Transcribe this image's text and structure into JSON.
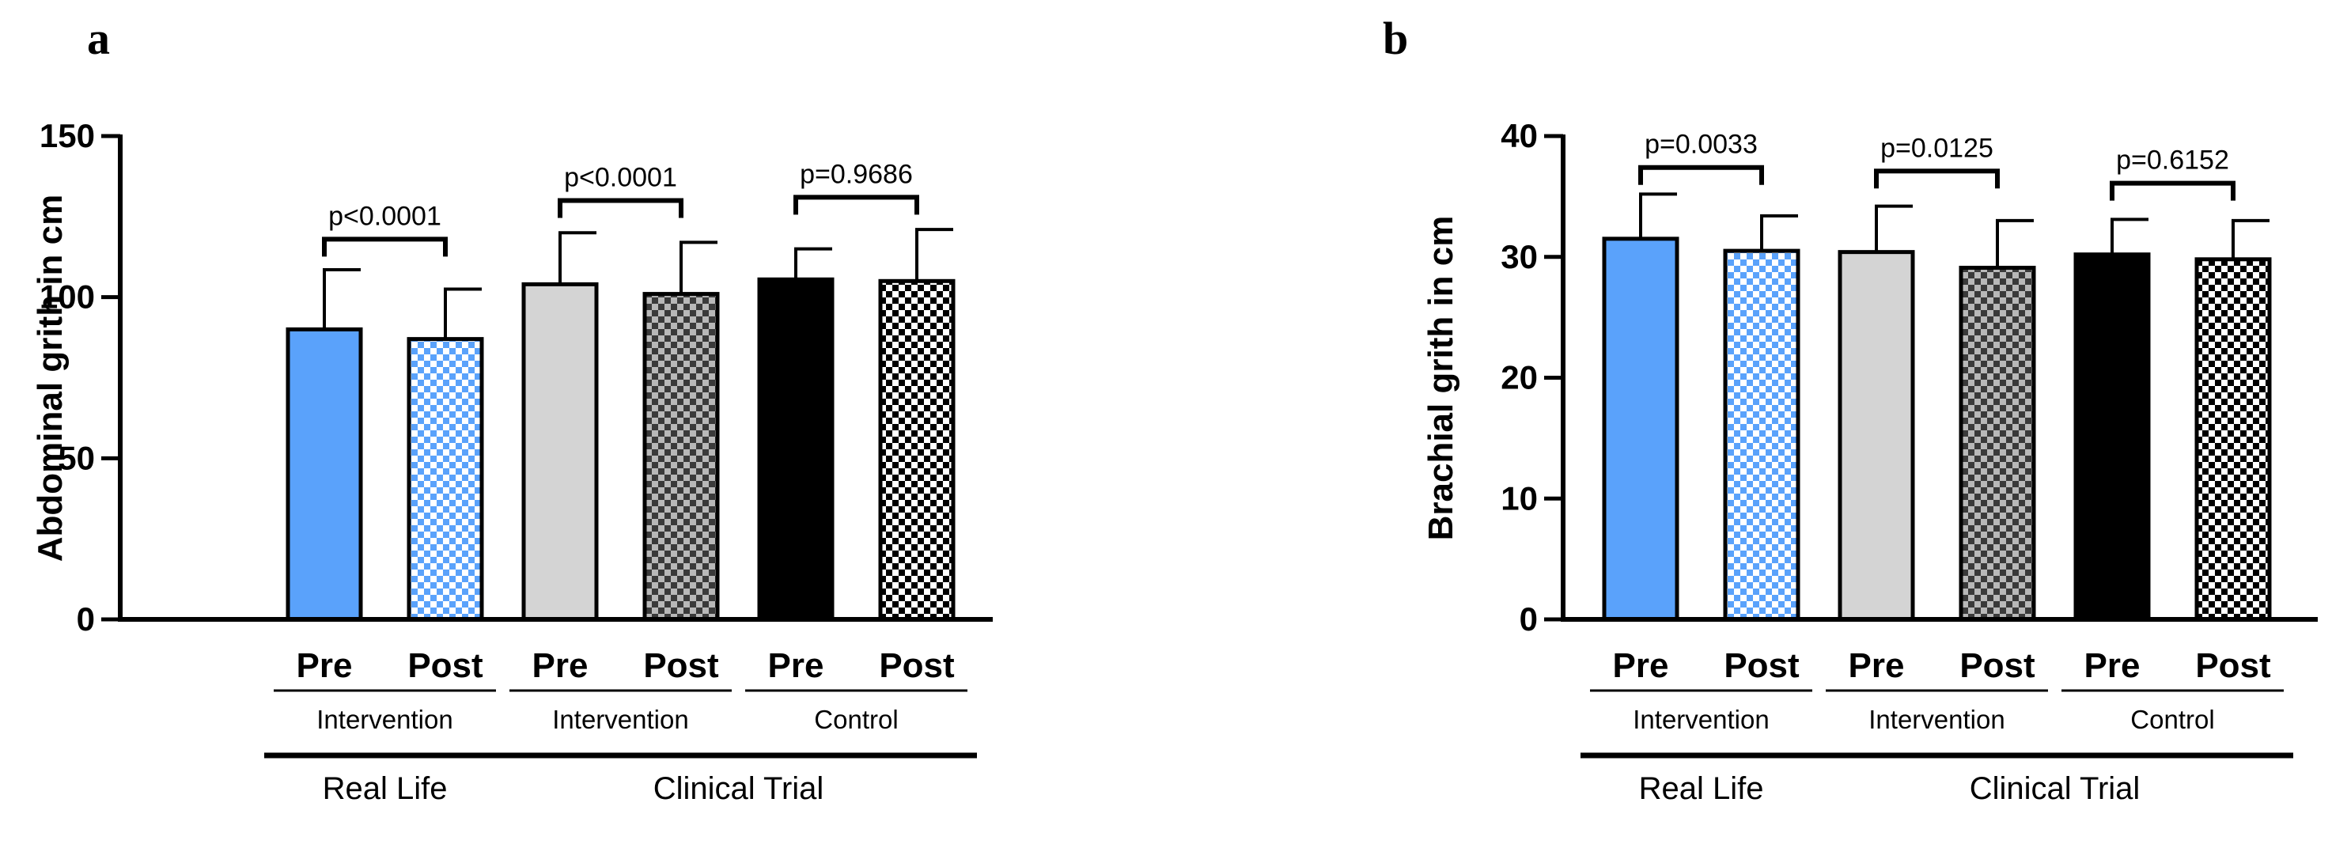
{
  "colors": {
    "blue": "#5aa2fb",
    "light_gray": "#d4d4d4",
    "dark_gray": "#6e6e6e",
    "black": "#000000",
    "white": "#ffffff"
  },
  "chart_data": [
    {
      "panel_label": "a",
      "type": "bar",
      "ylabel": "Abdominal grith in cm",
      "ylim": [
        0,
        150
      ],
      "yticks": [
        0,
        50,
        100,
        150
      ],
      "tick_labels": [
        "0",
        "50",
        "100",
        "150"
      ],
      "categories": [
        "Pre",
        "Post",
        "Pre",
        "Post",
        "Pre",
        "Post"
      ],
      "values": [
        90,
        87,
        104,
        101,
        105.5,
        105
      ],
      "errors": [
        18.5,
        15.5,
        16,
        16,
        9.5,
        16
      ],
      "fills": [
        "blue",
        "blue-check",
        "light-gray",
        "dark-check",
        "black",
        "black-check"
      ],
      "subgroups": [
        "Intervention",
        "Intervention",
        "Control"
      ],
      "groups": [
        {
          "label": "Real Life",
          "span": 1
        },
        {
          "label": "Clinical Trial",
          "span": 2
        }
      ],
      "pvalues": [
        {
          "text": "p<0.0001",
          "pair": [
            0,
            1
          ],
          "y": 118
        },
        {
          "text": "p<0.0001",
          "pair": [
            2,
            3
          ],
          "y": 130
        },
        {
          "text": "p=0.9686",
          "pair": [
            4,
            5
          ],
          "y": 131
        }
      ]
    },
    {
      "panel_label": "b",
      "type": "bar",
      "ylabel": "Brachial grith in cm",
      "ylim": [
        0,
        40
      ],
      "yticks": [
        0,
        10,
        20,
        30,
        40
      ],
      "tick_labels": [
        "0",
        "10",
        "20",
        "30",
        "40"
      ],
      "categories": [
        "Pre",
        "Post",
        "Pre",
        "Post",
        "Pre",
        "Post"
      ],
      "values": [
        31.5,
        30.5,
        30.4,
        29.1,
        30.2,
        29.8
      ],
      "errors": [
        3.7,
        2.9,
        3.8,
        3.9,
        2.9,
        3.2
      ],
      "fills": [
        "blue",
        "blue-check",
        "light-gray",
        "dark-check",
        "black",
        "black-check"
      ],
      "subgroups": [
        "Intervention",
        "Intervention",
        "Control"
      ],
      "groups": [
        {
          "label": "Real Life",
          "span": 1
        },
        {
          "label": "Clinical Trial",
          "span": 2
        }
      ],
      "pvalues": [
        {
          "text": "p=0.0033",
          "pair": [
            0,
            1
          ],
          "y": 37.4
        },
        {
          "text": "p=0.0125",
          "pair": [
            2,
            3
          ],
          "y": 37.1
        },
        {
          "text": "p=0.6152",
          "pair": [
            4,
            5
          ],
          "y": 36.1
        }
      ]
    }
  ]
}
